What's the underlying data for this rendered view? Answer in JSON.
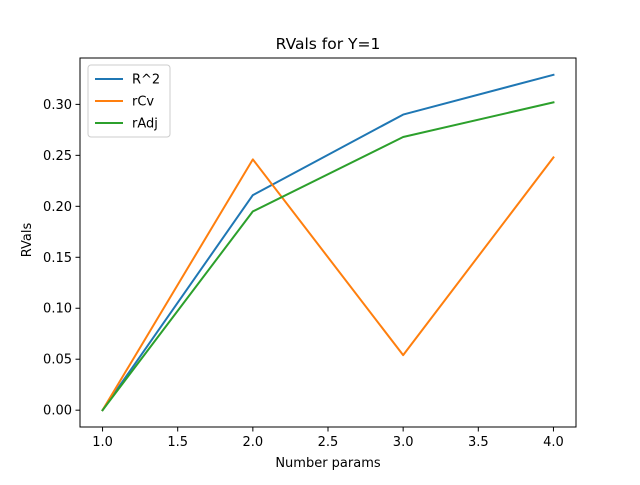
{
  "chart_data": {
    "type": "line",
    "title": "RVals for Y=1",
    "xlabel": "Number params",
    "ylabel": "RVals",
    "x": [
      1.0,
      2.0,
      3.0,
      4.0
    ],
    "series": [
      {
        "name": "R^2",
        "values": [
          0.0,
          0.211,
          0.29,
          0.329
        ],
        "color": "#1f77b4"
      },
      {
        "name": "rCv",
        "values": [
          0.0,
          0.246,
          0.054,
          0.248
        ],
        "color": "#ff7f0e"
      },
      {
        "name": "rAdj",
        "values": [
          0.0,
          0.195,
          0.268,
          0.302
        ],
        "color": "#2ca02c"
      }
    ],
    "xlim": [
      0.85,
      4.15
    ],
    "ylim": [
      -0.0165,
      0.3455
    ],
    "xticks": [
      1.0,
      1.5,
      2.0,
      2.5,
      3.0,
      3.5,
      4.0
    ],
    "xtick_labels": [
      "1.0",
      "1.5",
      "2.0",
      "2.5",
      "3.0",
      "3.5",
      "4.0"
    ],
    "yticks": [
      0.0,
      0.05,
      0.1,
      0.15,
      0.2,
      0.25,
      0.3
    ],
    "ytick_labels": [
      "0.00",
      "0.05",
      "0.10",
      "0.15",
      "0.20",
      "0.25",
      "0.30"
    ],
    "legend_position": "upper-left",
    "grid": false
  }
}
